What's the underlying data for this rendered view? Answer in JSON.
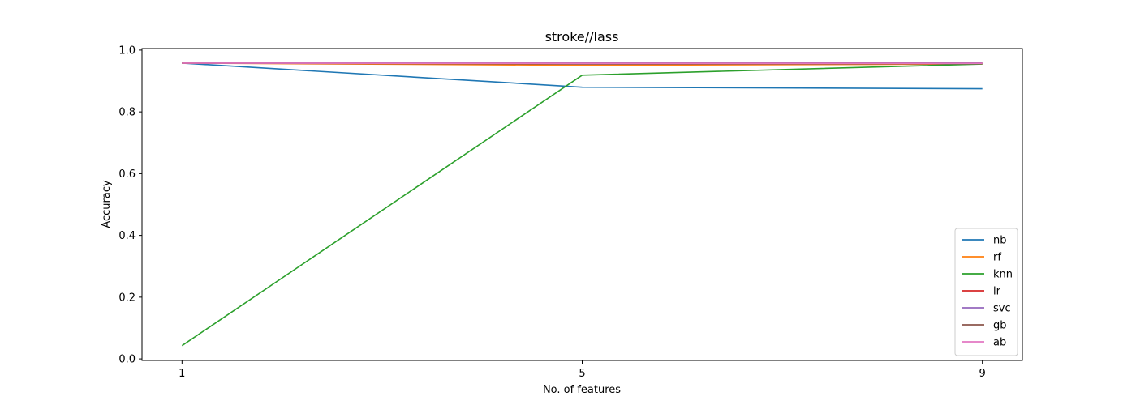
{
  "chart_data": {
    "type": "line",
    "title": "stroke//lass",
    "xlabel": "No. of features",
    "ylabel": "Accuracy",
    "x": [
      1,
      5,
      9
    ],
    "x_ticks": [
      "1",
      "5",
      "9"
    ],
    "y_ticks": [
      "0.0",
      "0.2",
      "0.4",
      "0.6",
      "0.8",
      "1.0"
    ],
    "xlim": [
      0.6,
      9.4
    ],
    "ylim": [
      -0.005,
      1.005
    ],
    "grid": false,
    "legend_position": "lower-right",
    "series": [
      {
        "name": "nb",
        "color": "#1f77b4",
        "values": [
          0.958,
          0.88,
          0.875
        ]
      },
      {
        "name": "rf",
        "color": "#ff7f0e",
        "values": [
          0.958,
          0.951,
          0.955
        ]
      },
      {
        "name": "knn",
        "color": "#2ca02c",
        "values": [
          0.043,
          0.919,
          0.955
        ]
      },
      {
        "name": "lr",
        "color": "#d62728",
        "values": [
          0.958,
          0.958,
          0.958
        ]
      },
      {
        "name": "svc",
        "color": "#9467bd",
        "values": [
          0.958,
          0.958,
          0.958
        ]
      },
      {
        "name": "gb",
        "color": "#8c564b",
        "values": [
          0.958,
          0.955,
          0.956
        ]
      },
      {
        "name": "ab",
        "color": "#e377c2",
        "values": [
          0.958,
          0.957,
          0.957
        ]
      }
    ]
  }
}
